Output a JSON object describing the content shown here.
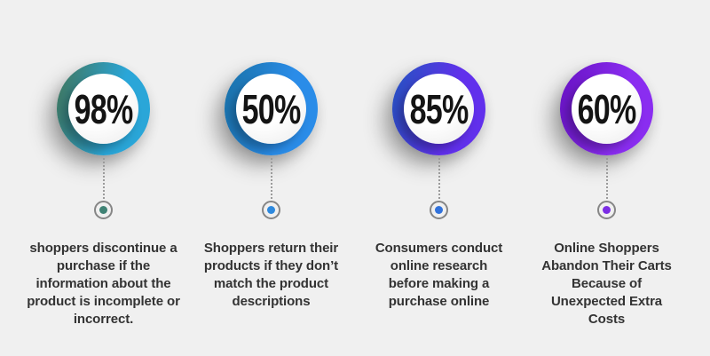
{
  "background_color": "#f0f0f0",
  "stats": [
    {
      "value": "98%",
      "label": "shoppers discontinue a purchase if the information about the product is incomplete or incorrect.",
      "ring_gradient_from": "#3e7a68",
      "ring_gradient_to": "#2aa6d8",
      "dot_color": "#3f8274"
    },
    {
      "value": "50%",
      "label": "Shoppers return their products if they don’t match the product descriptions",
      "ring_gradient_from": "#1b74ae",
      "ring_gradient_to": "#2a8ce8",
      "dot_color": "#2d89de"
    },
    {
      "value": "85%",
      "label": "Consumers conduct online research before making a purchase online",
      "ring_gradient_from": "#2a4fc4",
      "ring_gradient_to": "#6130ec",
      "dot_color": "#3172db"
    },
    {
      "value": "60%",
      "label": "Online Shoppers Abandon Their Carts Because of Unexpected Extra Costs",
      "ring_gradient_from": "#6b15c8",
      "ring_gradient_to": "#8a2df0",
      "dot_color": "#7b2de4"
    }
  ],
  "chart_data": {
    "type": "table",
    "title": "",
    "categories": [
      "shoppers discontinue a purchase if the information about the product is incomplete or incorrect.",
      "Shoppers return their products if they don’t match the product descriptions",
      "Consumers conduct online research before making a purchase online",
      "Online Shoppers Abandon Their Carts Because of Unexpected Extra Costs"
    ],
    "values": [
      98,
      50,
      85,
      60
    ],
    "unit": "%"
  }
}
